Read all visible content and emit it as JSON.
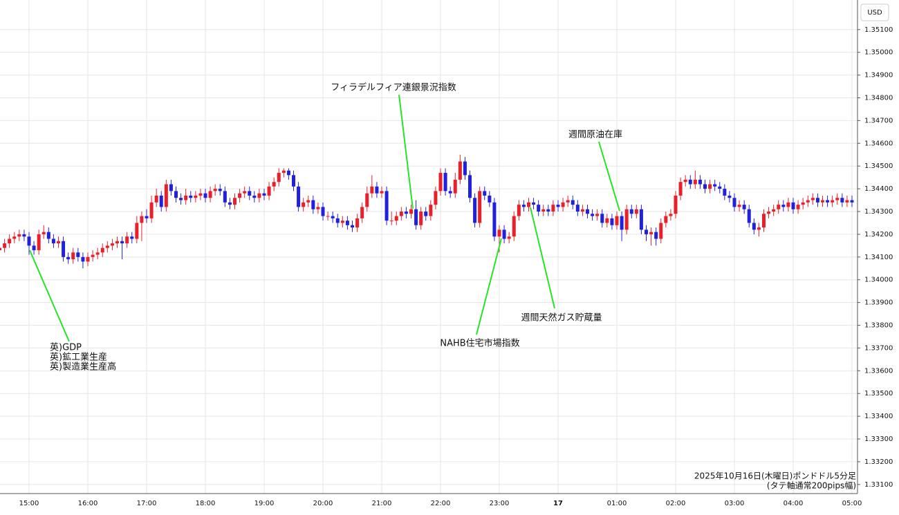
{
  "chart_data": {
    "type": "candlestick",
    "currency": "USD",
    "caption": [
      "2025年10月16日(木曜日)ポンドドル5分足",
      "(タテ軸通常200pips幅)"
    ],
    "up_color": "#e8202a",
    "down_color": "#2020dd",
    "grid": true,
    "annotations": [
      {
        "text": [
          "英)GDP",
          "英)鉱工業生産",
          "英)製造業生産高"
        ]
      },
      {
        "text": [
          "フィラデルフィア連銀景況指数"
        ]
      },
      {
        "text": [
          "週間原油在庫"
        ]
      },
      {
        "text": [
          "週間天然ガス貯蔵量"
        ]
      },
      {
        "text": [
          "NAHB住宅市場指数"
        ]
      }
    ],
    "ylim": [
      1.3306,
      1.3523
    ],
    "yticks": [
      {
        "value": 1.331,
        "label": "1.33100"
      },
      {
        "value": 1.332,
        "label": "1.33200"
      },
      {
        "value": 1.333,
        "label": "1.33300"
      },
      {
        "value": 1.334,
        "label": "1.33400"
      },
      {
        "value": 1.335,
        "label": "1.33500"
      },
      {
        "value": 1.336,
        "label": "1.33600"
      },
      {
        "value": 1.337,
        "label": "1.33700"
      },
      {
        "value": 1.338,
        "label": "1.33800"
      },
      {
        "value": 1.339,
        "label": "1.33900"
      },
      {
        "value": 1.34,
        "label": "1.34000"
      },
      {
        "value": 1.341,
        "label": "1.34100"
      },
      {
        "value": 1.342,
        "label": "1.34200"
      },
      {
        "value": 1.343,
        "label": "1.34300"
      },
      {
        "value": 1.344,
        "label": "1.34400"
      },
      {
        "value": 1.345,
        "label": "1.34500"
      },
      {
        "value": 1.346,
        "label": "1.34600"
      },
      {
        "value": 1.347,
        "label": "1.34700"
      },
      {
        "value": 1.348,
        "label": "1.34800"
      },
      {
        "value": 1.349,
        "label": "1.34900"
      },
      {
        "value": 1.35,
        "label": "1.35000"
      },
      {
        "value": 1.351,
        "label": "1.35100"
      }
    ],
    "categories": [
      null,
      null,
      null,
      null,
      null,
      null,
      "15:00",
      null,
      null,
      null,
      null,
      null,
      null,
      null,
      null,
      null,
      null,
      null,
      "16:00",
      null,
      null,
      null,
      null,
      null,
      null,
      null,
      null,
      null,
      null,
      null,
      "17:00",
      null,
      null,
      null,
      null,
      null,
      null,
      null,
      null,
      null,
      null,
      null,
      "18:00",
      null,
      null,
      null,
      null,
      null,
      null,
      null,
      null,
      null,
      null,
      null,
      "19:00",
      null,
      null,
      null,
      null,
      null,
      null,
      null,
      null,
      null,
      null,
      null,
      "20:00",
      null,
      null,
      null,
      null,
      null,
      null,
      null,
      null,
      null,
      null,
      null,
      "21:00",
      null,
      null,
      null,
      null,
      null,
      null,
      null,
      null,
      null,
      null,
      null,
      "22:00",
      null,
      null,
      null,
      null,
      null,
      null,
      null,
      null,
      null,
      null,
      null,
      "23:00",
      null,
      null,
      null,
      null,
      null,
      null,
      null,
      null,
      null,
      null,
      null,
      "17",
      null,
      null,
      null,
      null,
      null,
      null,
      null,
      null,
      null,
      null,
      null,
      "01:00",
      null,
      null,
      null,
      null,
      null,
      null,
      null,
      null,
      null,
      null,
      null,
      "02:00",
      null,
      null,
      null,
      null,
      null,
      null,
      null,
      null,
      null,
      null,
      null,
      "03:00",
      null,
      null,
      null,
      null,
      null,
      null,
      null,
      null,
      null,
      null,
      null,
      "04:00",
      null,
      null,
      null,
      null,
      null,
      null,
      null,
      null,
      null,
      null,
      null,
      "05:00"
    ],
    "open": [
      1.3413,
      1.3414,
      1.3416,
      1.3418,
      1.3419,
      1.342,
      1.3419,
      1.3415,
      1.3413,
      1.342,
      1.3421,
      1.3418,
      1.3416,
      1.3417,
      1.341,
      1.3409,
      1.3412,
      1.341,
      1.3408,
      1.341,
      1.3411,
      1.3412,
      1.3414,
      1.3415,
      1.3416,
      1.3417,
      1.3416,
      1.3419,
      1.3418,
      1.3425,
      1.3428,
      1.3427,
      1.3434,
      1.3437,
      1.3432,
      1.3442,
      1.3439,
      1.3436,
      1.3435,
      1.3437,
      1.3436,
      1.3437,
      1.3438,
      1.3436,
      1.3439,
      1.344,
      1.3439,
      1.3434,
      1.3433,
      1.3436,
      1.3438,
      1.3439,
      1.3437,
      1.3436,
      1.3438,
      1.3437,
      1.3441,
      1.3443,
      1.3447,
      1.3448,
      1.3446,
      1.3441,
      1.3432,
      1.3434,
      1.3435,
      1.3431,
      1.3432,
      1.3428,
      1.3428,
      1.3427,
      1.3425,
      1.3426,
      1.3424,
      1.3423,
      1.3427,
      1.3432,
      1.3438,
      1.3441,
      1.3438,
      1.3439,
      1.3426,
      1.3426,
      1.3428,
      1.343,
      1.3429,
      1.3431,
      1.3424,
      1.343,
      1.3428,
      1.3433,
      1.3439,
      1.3447,
      1.3439,
      1.3438,
      1.3444,
      1.3452,
      1.3446,
      1.3436,
      1.3425,
      1.3439,
      1.3437,
      1.3434,
      1.3419,
      1.3422,
      1.3418,
      1.3419,
      1.3428,
      1.3433,
      1.3432,
      1.3434,
      1.3433,
      1.343,
      1.3431,
      1.343,
      1.3433,
      1.3432,
      1.3434,
      1.3435,
      1.3433,
      1.343,
      1.3431,
      1.3429,
      1.3428,
      1.3429,
      1.3425,
      1.3427,
      1.3424,
      1.3428,
      1.3422,
      1.3431,
      1.3429,
      1.3431,
      1.3422,
      1.342,
      1.3421,
      1.3418,
      1.3425,
      1.3428,
      1.3429,
      1.3437,
      1.3443,
      1.3444,
      1.3442,
      1.3444,
      1.3442,
      1.344,
      1.3442,
      1.3441,
      1.344,
      1.3437,
      1.3436,
      1.3432,
      1.3433,
      1.3431,
      1.3425,
      1.3422,
      1.3423,
      1.3429,
      1.343,
      1.3431,
      1.3433,
      1.3432,
      1.3434,
      1.3431,
      1.3433,
      1.3434,
      1.3435,
      1.3436,
      1.3434,
      1.3435,
      1.3434,
      1.3435,
      1.3436,
      1.3434,
      1.3435
    ],
    "high": [
      1.3416,
      1.3418,
      1.342,
      1.3421,
      1.3422,
      1.3422,
      1.3421,
      1.3417,
      1.3422,
      1.3424,
      1.3423,
      1.342,
      1.3419,
      1.3419,
      1.3412,
      1.3414,
      1.3414,
      1.3412,
      1.3412,
      1.3413,
      1.3414,
      1.3416,
      1.3417,
      1.3418,
      1.3419,
      1.3419,
      1.3421,
      1.3421,
      1.3428,
      1.343,
      1.3431,
      1.3437,
      1.344,
      1.3439,
      1.3444,
      1.3444,
      1.3441,
      1.3438,
      1.344,
      1.3439,
      1.3439,
      1.344,
      1.344,
      1.3441,
      1.3442,
      1.3442,
      1.3441,
      1.3436,
      1.3438,
      1.344,
      1.3441,
      1.3441,
      1.3439,
      1.344,
      1.344,
      1.3443,
      1.3445,
      1.3449,
      1.3449,
      1.3449,
      1.3448,
      1.3443,
      1.3436,
      1.3437,
      1.3437,
      1.3434,
      1.3434,
      1.343,
      1.343,
      1.3429,
      1.3428,
      1.3428,
      1.3426,
      1.3429,
      1.3434,
      1.3441,
      1.3446,
      1.3443,
      1.3441,
      1.3441,
      1.343,
      1.343,
      1.3432,
      1.3432,
      1.3433,
      1.3435,
      1.3432,
      1.3432,
      1.3435,
      1.3441,
      1.3449,
      1.3449,
      1.3441,
      1.3447,
      1.3455,
      1.3454,
      1.3448,
      1.3438,
      1.3441,
      1.3441,
      1.3439,
      1.3436,
      1.3424,
      1.3424,
      1.3421,
      1.343,
      1.3435,
      1.3435,
      1.3436,
      1.3436,
      1.3435,
      1.3433,
      1.3433,
      1.3435,
      1.3435,
      1.3436,
      1.3437,
      1.3437,
      1.3435,
      1.3433,
      1.3433,
      1.3431,
      1.3431,
      1.3431,
      1.3429,
      1.3429,
      1.343,
      1.343,
      1.3433,
      1.3433,
      1.3433,
      1.3433,
      1.3424,
      1.3423,
      1.3423,
      1.3427,
      1.343,
      1.3431,
      1.3439,
      1.3445,
      1.3446,
      1.3446,
      1.3448,
      1.3446,
      1.3444,
      1.3444,
      1.3444,
      1.3443,
      1.3442,
      1.3439,
      1.3438,
      1.3435,
      1.3435,
      1.3433,
      1.3427,
      1.3425,
      1.3431,
      1.3432,
      1.3433,
      1.3435,
      1.3435,
      1.3436,
      1.3436,
      1.3435,
      1.3436,
      1.3437,
      1.3438,
      1.3438,
      1.3437,
      1.3437,
      1.3437,
      1.3438,
      1.3438,
      1.3437,
      1.3437
    ],
    "low": [
      1.3411,
      1.3412,
      1.3414,
      1.3416,
      1.3417,
      1.3417,
      1.3411,
      1.3411,
      1.3411,
      1.3418,
      1.3416,
      1.3414,
      1.3414,
      1.3408,
      1.3407,
      1.3407,
      1.3408,
      1.3405,
      1.3406,
      1.3408,
      1.3409,
      1.341,
      1.3412,
      1.3413,
      1.3414,
      1.3409,
      1.3414,
      1.3416,
      1.3416,
      1.3417,
      1.3425,
      1.3425,
      1.3432,
      1.343,
      1.343,
      1.3437,
      1.3434,
      1.3433,
      1.3433,
      1.3434,
      1.3434,
      1.3435,
      1.3434,
      1.3434,
      1.3437,
      1.3437,
      1.3432,
      1.3431,
      1.3431,
      1.3434,
      1.3436,
      1.3435,
      1.3434,
      1.3434,
      1.3435,
      1.3435,
      1.3439,
      1.3441,
      1.3445,
      1.3444,
      1.3439,
      1.343,
      1.343,
      1.3432,
      1.3429,
      1.3429,
      1.3426,
      1.3426,
      1.3425,
      1.3423,
      1.3423,
      1.3422,
      1.3421,
      1.3421,
      1.3425,
      1.343,
      1.3436,
      1.3436,
      1.3436,
      1.3424,
      1.3424,
      1.3424,
      1.3426,
      1.3427,
      1.3427,
      1.3422,
      1.3422,
      1.3426,
      1.3426,
      1.3431,
      1.3437,
      1.3437,
      1.3436,
      1.3436,
      1.3442,
      1.3444,
      1.3434,
      1.3423,
      1.3423,
      1.3435,
      1.3432,
      1.3417,
      1.3412,
      1.3416,
      1.3416,
      1.3417,
      1.3426,
      1.343,
      1.343,
      1.3431,
      1.3428,
      1.3428,
      1.3428,
      1.3428,
      1.343,
      1.343,
      1.3432,
      1.3431,
      1.3428,
      1.3428,
      1.3427,
      1.3426,
      1.3426,
      1.3423,
      1.3423,
      1.3422,
      1.3422,
      1.3417,
      1.342,
      1.3427,
      1.3427,
      1.342,
      1.3417,
      1.3415,
      1.3415,
      1.3416,
      1.3423,
      1.3426,
      1.3427,
      1.3435,
      1.3441,
      1.344,
      1.344,
      1.344,
      1.3438,
      1.3438,
      1.3439,
      1.3438,
      1.3435,
      1.3434,
      1.343,
      1.343,
      1.3429,
      1.3423,
      1.342,
      1.3419,
      1.3421,
      1.3427,
      1.3428,
      1.3429,
      1.343,
      1.343,
      1.3429,
      1.3429,
      1.3431,
      1.3432,
      1.3433,
      1.3432,
      1.3432,
      1.3432,
      1.3432,
      1.3433,
      1.3432,
      1.3432,
      1.3432
    ],
    "close": [
      1.3414,
      1.3416,
      1.3418,
      1.3419,
      1.342,
      1.3419,
      1.3415,
      1.3413,
      1.342,
      1.3421,
      1.3418,
      1.3416,
      1.3417,
      1.341,
      1.3409,
      1.3412,
      1.341,
      1.3408,
      1.341,
      1.3411,
      1.3412,
      1.3414,
      1.3415,
      1.3416,
      1.3417,
      1.3416,
      1.3419,
      1.3418,
      1.3425,
      1.3428,
      1.3427,
      1.3434,
      1.3437,
      1.3432,
      1.3442,
      1.3439,
      1.3436,
      1.3435,
      1.3437,
      1.3436,
      1.3437,
      1.3438,
      1.3436,
      1.3439,
      1.344,
      1.3439,
      1.3434,
      1.3433,
      1.3436,
      1.3438,
      1.3439,
      1.3437,
      1.3436,
      1.3438,
      1.3437,
      1.3441,
      1.3443,
      1.3447,
      1.3448,
      1.3446,
      1.3441,
      1.3432,
      1.3434,
      1.3435,
      1.3431,
      1.3432,
      1.3428,
      1.3428,
      1.3427,
      1.3425,
      1.3426,
      1.3424,
      1.3423,
      1.3427,
      1.3432,
      1.3438,
      1.3441,
      1.3438,
      1.3439,
      1.3426,
      1.3426,
      1.3428,
      1.343,
      1.3429,
      1.3431,
      1.3424,
      1.343,
      1.3428,
      1.3433,
      1.3439,
      1.3447,
      1.3439,
      1.3438,
      1.3444,
      1.3452,
      1.3446,
      1.3436,
      1.3425,
      1.3439,
      1.3437,
      1.3434,
      1.3419,
      1.3422,
      1.3418,
      1.3419,
      1.3428,
      1.3433,
      1.3432,
      1.3434,
      1.3433,
      1.343,
      1.3431,
      1.343,
      1.3433,
      1.3432,
      1.3434,
      1.3435,
      1.3433,
      1.343,
      1.3431,
      1.3429,
      1.3428,
      1.3429,
      1.3425,
      1.3427,
      1.3424,
      1.3428,
      1.3422,
      1.3431,
      1.3429,
      1.3431,
      1.3422,
      1.342,
      1.3421,
      1.3418,
      1.3425,
      1.3428,
      1.3429,
      1.3437,
      1.3443,
      1.3444,
      1.3442,
      1.3444,
      1.3442,
      1.344,
      1.3442,
      1.3441,
      1.344,
      1.3437,
      1.3436,
      1.3432,
      1.3433,
      1.3431,
      1.3425,
      1.3422,
      1.3423,
      1.3429,
      1.343,
      1.3431,
      1.3433,
      1.3432,
      1.3434,
      1.3431,
      1.3433,
      1.3434,
      1.3435,
      1.3436,
      1.3434,
      1.3435,
      1.3434,
      1.3435,
      1.3436,
      1.3434,
      1.3435,
      1.3434
    ]
  }
}
